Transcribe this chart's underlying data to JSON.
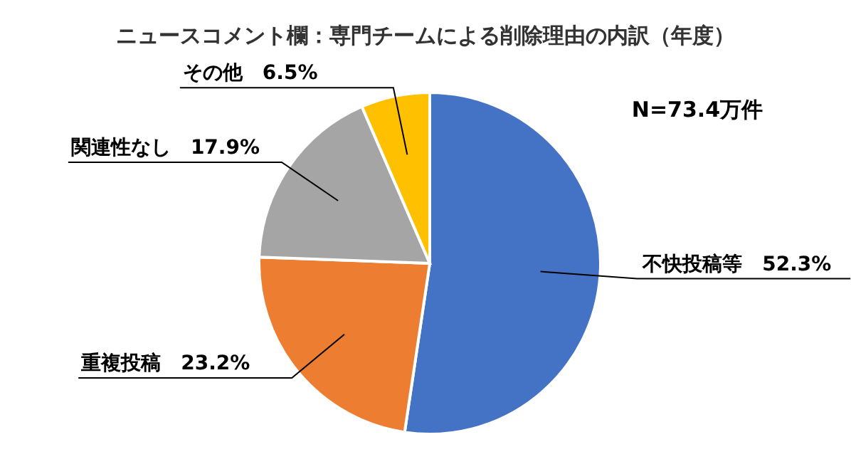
{
  "chart_data": {
    "type": "pie",
    "title": "ニュースコメント欄：専門チームによる削除理由の内訳（年度）",
    "categories": [
      "不快投稿等",
      "重複投稿",
      "関連性なし",
      "その他"
    ],
    "values": [
      52.3,
      23.2,
      17.9,
      6.5
    ],
    "colors": [
      "#4472c4",
      "#ed7d31",
      "#a5a5a5",
      "#ffc000"
    ],
    "value_labels": [
      "52.3%",
      "23.2%",
      "17.9%",
      "6.5%"
    ],
    "annotations": [
      "N=73.4万件"
    ]
  }
}
